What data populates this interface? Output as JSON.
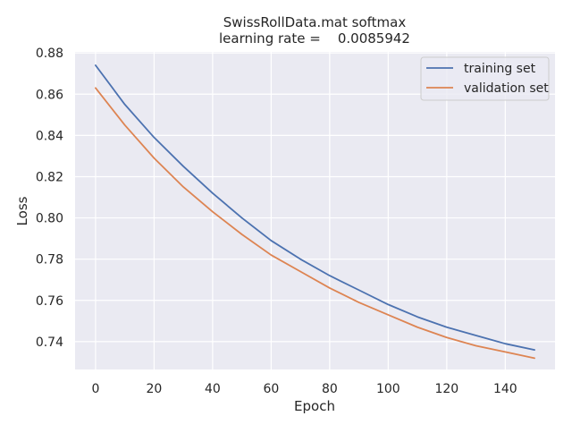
{
  "chart_data": {
    "type": "line",
    "title_line1": "SwissRollData.mat softmax",
    "title_line2": "learning rate =    0.0085942",
    "xlabel": "Epoch",
    "ylabel": "Loss",
    "xlim": [
      -7,
      157
    ],
    "ylim": [
      0.7265,
      0.8805
    ],
    "x_ticks": [
      0,
      20,
      40,
      60,
      80,
      100,
      120,
      140
    ],
    "y_ticks": [
      0.74,
      0.76,
      0.78,
      0.8,
      0.82,
      0.84,
      0.86,
      0.88
    ],
    "y_tick_labels": [
      "0.74",
      "0.76",
      "0.78",
      "0.80",
      "0.82",
      "0.84",
      "0.86",
      "0.88"
    ],
    "grid": true,
    "legend_position": "upper right",
    "series": [
      {
        "name": "training set",
        "color": "#4c72b0",
        "x": [
          0,
          10,
          20,
          30,
          40,
          50,
          60,
          70,
          80,
          90,
          100,
          110,
          120,
          130,
          140,
          150
        ],
        "y": [
          0.874,
          0.855,
          0.839,
          0.825,
          0.812,
          0.8,
          0.789,
          0.78,
          0.772,
          0.765,
          0.758,
          0.752,
          0.747,
          0.743,
          0.739,
          0.736
        ]
      },
      {
        "name": "validation set",
        "color": "#dd8452",
        "x": [
          0,
          10,
          20,
          30,
          40,
          50,
          60,
          70,
          80,
          90,
          100,
          110,
          120,
          130,
          140,
          150
        ],
        "y": [
          0.863,
          0.845,
          0.829,
          0.815,
          0.803,
          0.792,
          0.782,
          0.774,
          0.766,
          0.759,
          0.753,
          0.747,
          0.742,
          0.738,
          0.735,
          0.732
        ]
      }
    ]
  }
}
